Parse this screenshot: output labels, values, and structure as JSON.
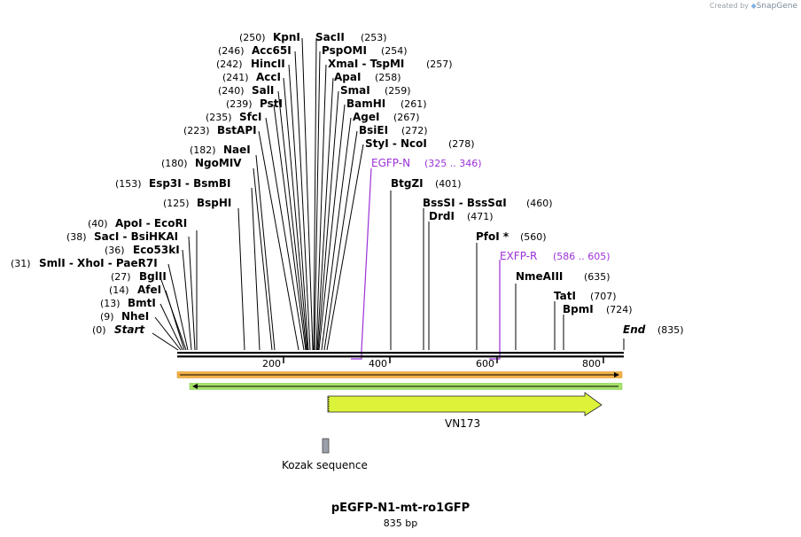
{
  "credit": {
    "prefix": "Created by",
    "brand": "SnapGene"
  },
  "plasmid": {
    "name": "pEGFP-N1-mt-ro1GFP",
    "length_label": "835 bp",
    "length_bp": 835
  },
  "sites": [
    {
      "pos": "(250)",
      "name": "KpnI",
      "bp": 250
    },
    {
      "pos": "(253)",
      "name": "SacII",
      "bp": 253
    },
    {
      "pos": "(246)",
      "name": "Acc65I",
      "bp": 246
    },
    {
      "pos": "(254)",
      "name": "PspOMI",
      "bp": 254
    },
    {
      "pos": "(242)",
      "name": "HincII",
      "bp": 242
    },
    {
      "pos": "(257)",
      "name": "XmaI - TspMI",
      "bp": 257
    },
    {
      "pos": "(241)",
      "name": "AccI",
      "bp": 241
    },
    {
      "pos": "(258)",
      "name": "ApaI",
      "bp": 258
    },
    {
      "pos": "(240)",
      "name": "SalI",
      "bp": 240
    },
    {
      "pos": "(259)",
      "name": "SmaI",
      "bp": 259
    },
    {
      "pos": "(239)",
      "name": "PstI",
      "bp": 239
    },
    {
      "pos": "(261)",
      "name": "BamHI",
      "bp": 261
    },
    {
      "pos": "(235)",
      "name": "SfcI",
      "bp": 235
    },
    {
      "pos": "(267)",
      "name": "AgeI",
      "bp": 267
    },
    {
      "pos": "(223)",
      "name": "BstAPI",
      "bp": 223
    },
    {
      "pos": "(272)",
      "name": "BsiEI",
      "bp": 272
    },
    {
      "pos": "(278)",
      "name": "StyI - NcoI",
      "bp": 278
    },
    {
      "pos": "(182)",
      "name": "NaeI",
      "bp": 182
    },
    {
      "pos": "(180)",
      "name": "NgoMIV",
      "bp": 180
    },
    {
      "pos": "(153)",
      "name": "Esp3I - BsmBI",
      "bp": 153
    },
    {
      "pos": "(401)",
      "name": "BtgZI",
      "bp": 401
    },
    {
      "pos": "(125)",
      "name": "BspHI",
      "bp": 125
    },
    {
      "pos": "(460)",
      "name": "BssSI - BssSαI",
      "bp": 460
    },
    {
      "pos": "(471)",
      "name": "DrdI",
      "bp": 471
    },
    {
      "pos": "(40)",
      "name": "ApoI - EcoRI",
      "bp": 40
    },
    {
      "pos": "(38)",
      "name": "SacI - BsiHKAI",
      "bp": 38
    },
    {
      "pos": "(560)",
      "name": "PfoI *",
      "bp": 560
    },
    {
      "pos": "(36)",
      "name": "Eco53kI",
      "bp": 36
    },
    {
      "pos": "(31)",
      "name": "SmlI - XhoI - PaeR7I",
      "bp": 31
    },
    {
      "pos": "(27)",
      "name": "BglII",
      "bp": 27
    },
    {
      "pos": "(635)",
      "name": "NmeAIII",
      "bp": 635
    },
    {
      "pos": "(14)",
      "name": "AfeI",
      "bp": 14
    },
    {
      "pos": "(707)",
      "name": "TatI",
      "bp": 707
    },
    {
      "pos": "(13)",
      "name": "BmtI",
      "bp": 13
    },
    {
      "pos": "(724)",
      "name": "BpmI",
      "bp": 724
    },
    {
      "pos": "(9)",
      "name": "NheI",
      "bp": 9
    },
    {
      "pos": "(0)",
      "name": "Start",
      "bp": 0
    },
    {
      "pos": "(835)",
      "name": "End",
      "bp": 835
    }
  ],
  "primers": [
    {
      "name": "EGFP-N",
      "range": "(325 .. 346)",
      "start_bp": 325,
      "end_bp": 346
    },
    {
      "name": "EXFP-R",
      "range": "(586 .. 605)",
      "start_bp": 586,
      "end_bp": 605
    }
  ],
  "ruler": {
    "ticks": [
      "200",
      "400",
      "600",
      "800"
    ],
    "tick_bp": [
      200,
      400,
      600,
      800
    ]
  },
  "features": [
    {
      "name": "VN173",
      "start_bp": 282,
      "end_bp": 795,
      "color": "#ddf33a"
    },
    {
      "name": "Kozak sequence",
      "start_bp": 272,
      "end_bp": 282,
      "color": "#9aa0aa"
    }
  ],
  "colors": {
    "orange_band": "#f0a030",
    "green_band": "#6fc43a",
    "primer": "#9b30d9"
  }
}
